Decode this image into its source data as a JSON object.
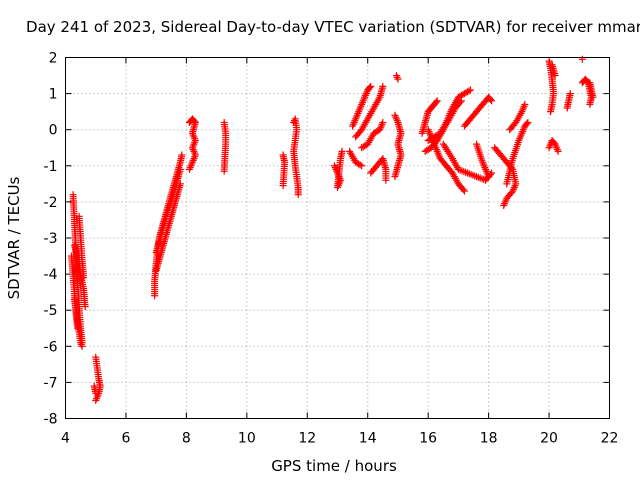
{
  "chart_data": {
    "type": "scatter",
    "title": "Day 241 of 2023, Sidereal Day-to-day VTEC variation (SDTVAR) for receiver mmar",
    "xlabel": "GPS time / hours",
    "ylabel": "SDTVAR / TECUs",
    "xlim": [
      4,
      22
    ],
    "ylim": [
      -8,
      2
    ],
    "xticks": [
      "4",
      "6",
      "8",
      "10",
      "12",
      "14",
      "16",
      "18",
      "20",
      "22"
    ],
    "yticks": [
      "2",
      "1",
      "0",
      "-1",
      "-2",
      "-3",
      "-4",
      "-5",
      "-6",
      "-7",
      "-8"
    ],
    "grid": true,
    "marker": "plus",
    "marker_color": "#ff0000",
    "series": [
      {
        "segments": [
          [
            [
              4.25,
              -1.8
            ],
            [
              4.3,
              -2.6
            ],
            [
              4.35,
              -3.4
            ],
            [
              4.4,
              -4.2
            ],
            [
              4.45,
              -4.9
            ],
            [
              4.5,
              -5.5
            ],
            [
              4.55,
              -5.9
            ]
          ],
          [
            [
              4.2,
              -3.5
            ],
            [
              4.25,
              -4.0
            ],
            [
              4.3,
              -4.6
            ],
            [
              4.35,
              -5.1
            ],
            [
              4.4,
              -5.5
            ]
          ],
          [
            [
              4.45,
              -2.4
            ],
            [
              4.5,
              -3.0
            ],
            [
              4.55,
              -3.6
            ],
            [
              4.6,
              -4.1
            ]
          ],
          [
            [
              4.3,
              -4.7
            ],
            [
              4.35,
              -5.0
            ],
            [
              4.4,
              -5.3
            ],
            [
              4.45,
              -5.6
            ],
            [
              4.5,
              -5.9
            ],
            [
              4.55,
              -6.0
            ]
          ],
          [
            [
              4.3,
              -3.2
            ],
            [
              4.4,
              -3.6
            ],
            [
              4.5,
              -4.0
            ],
            [
              4.6,
              -4.4
            ],
            [
              4.65,
              -4.9
            ]
          ],
          [
            [
              5.0,
              -6.3
            ],
            [
              5.05,
              -6.6
            ],
            [
              5.1,
              -6.9
            ],
            [
              5.15,
              -7.1
            ],
            [
              5.1,
              -7.3
            ],
            [
              5.05,
              -7.4
            ],
            [
              5.0,
              -7.5
            ]
          ],
          [
            [
              4.95,
              -7.1
            ],
            [
              5.0,
              -7.3
            ]
          ],
          [
            [
              6.95,
              -4.6
            ],
            [
              6.95,
              -4.2
            ],
            [
              7.0,
              -3.7
            ],
            [
              7.05,
              -3.3
            ],
            [
              7.1,
              -3.0
            ],
            [
              7.2,
              -2.7
            ],
            [
              7.3,
              -2.4
            ],
            [
              7.4,
              -2.1
            ],
            [
              7.5,
              -1.8
            ],
            [
              7.6,
              -1.5
            ],
            [
              7.7,
              -1.2
            ],
            [
              7.8,
              -0.9
            ],
            [
              7.85,
              -0.7
            ]
          ],
          [
            [
              7.0,
              -3.4
            ],
            [
              7.1,
              -3.1
            ],
            [
              7.2,
              -2.8
            ],
            [
              7.3,
              -2.5
            ],
            [
              7.4,
              -2.2
            ],
            [
              7.5,
              -2.0
            ],
            [
              7.6,
              -1.7
            ],
            [
              7.7,
              -1.4
            ],
            [
              7.8,
              -1.1
            ]
          ],
          [
            [
              7.0,
              -3.9
            ],
            [
              7.1,
              -3.6
            ],
            [
              7.2,
              -3.3
            ],
            [
              7.3,
              -3.0
            ],
            [
              7.4,
              -2.7
            ],
            [
              7.5,
              -2.4
            ],
            [
              7.6,
              -2.1
            ],
            [
              7.7,
              -1.8
            ],
            [
              7.8,
              -1.5
            ]
          ],
          [
            [
              8.1,
              0.2
            ],
            [
              8.2,
              0.3
            ],
            [
              8.3,
              0.2
            ],
            [
              8.2,
              -0.1
            ],
            [
              8.3,
              -0.3
            ],
            [
              8.2,
              -0.5
            ],
            [
              8.3,
              -0.7
            ],
            [
              8.2,
              -0.9
            ],
            [
              8.1,
              -1.1
            ]
          ],
          [
            [
              9.25,
              0.2
            ],
            [
              9.3,
              -0.1
            ],
            [
              9.3,
              -0.4
            ],
            [
              9.25,
              -1.15
            ]
          ],
          [
            [
              11.2,
              -0.7
            ],
            [
              11.25,
              -0.9
            ],
            [
              11.2,
              -1.55
            ]
          ],
          [
            [
              11.55,
              0.2
            ],
            [
              11.6,
              0.3
            ],
            [
              11.65,
              0.0
            ],
            [
              11.6,
              -0.3
            ],
            [
              11.55,
              -0.6
            ],
            [
              11.6,
              -1.0
            ],
            [
              11.65,
              -1.3
            ],
            [
              11.7,
              -1.6
            ],
            [
              11.7,
              -1.8
            ]
          ],
          [
            [
              12.9,
              -1.0
            ],
            [
              13.0,
              -1.2
            ],
            [
              13.1,
              -1.4
            ],
            [
              13.0,
              -1.6
            ],
            [
              13.1,
              -0.8
            ],
            [
              13.15,
              -0.6
            ]
          ],
          [
            [
              13.5,
              0.1
            ],
            [
              13.6,
              0.3
            ],
            [
              13.7,
              0.5
            ],
            [
              13.8,
              0.7
            ],
            [
              13.9,
              0.9
            ],
            [
              14.0,
              1.1
            ],
            [
              14.1,
              1.2
            ]
          ],
          [
            [
              13.6,
              -0.2
            ],
            [
              13.8,
              0.0
            ],
            [
              14.0,
              0.3
            ],
            [
              14.2,
              0.6
            ],
            [
              14.4,
              0.9
            ],
            [
              14.5,
              1.2
            ]
          ],
          [
            [
              13.8,
              -0.5
            ],
            [
              14.0,
              -0.4
            ],
            [
              14.2,
              -0.1
            ],
            [
              14.4,
              0.0
            ],
            [
              14.5,
              0.2
            ]
          ],
          [
            [
              13.4,
              -0.6
            ],
            [
              13.6,
              -0.9
            ],
            [
              13.8,
              -1.0
            ]
          ],
          [
            [
              14.1,
              -1.2
            ],
            [
              14.3,
              -1.0
            ],
            [
              14.5,
              -0.8
            ],
            [
              14.6,
              -1.1
            ],
            [
              14.6,
              -1.4
            ]
          ],
          [
            [
              14.95,
              1.5
            ],
            [
              15.0,
              1.4
            ]
          ],
          [
            [
              14.9,
              0.4
            ],
            [
              15.0,
              0.2
            ],
            [
              15.1,
              -0.1
            ],
            [
              15.0,
              -0.4
            ],
            [
              15.1,
              -0.7
            ],
            [
              15.0,
              -1.0
            ],
            [
              14.9,
              -1.3
            ]
          ],
          [
            [
              15.8,
              -0.1
            ],
            [
              15.9,
              0.2
            ],
            [
              16.0,
              0.5
            ],
            [
              16.1,
              0.6
            ],
            [
              16.2,
              0.7
            ],
            [
              16.3,
              0.8
            ]
          ],
          [
            [
              16.0,
              -0.3
            ],
            [
              16.2,
              -0.2
            ],
            [
              16.4,
              -0.1
            ],
            [
              16.6,
              0.2
            ],
            [
              16.8,
              0.6
            ],
            [
              17.0,
              0.9
            ],
            [
              17.2,
              1.0
            ],
            [
              17.4,
              1.1
            ]
          ],
          [
            [
              15.9,
              -0.6
            ],
            [
              16.1,
              -0.5
            ],
            [
              16.3,
              -0.3
            ],
            [
              16.5,
              0.0
            ],
            [
              16.7,
              0.3
            ],
            [
              16.9,
              0.6
            ],
            [
              17.1,
              0.8
            ]
          ],
          [
            [
              16.0,
              0.0
            ],
            [
              16.2,
              -0.4
            ],
            [
              16.4,
              -0.8
            ],
            [
              16.6,
              -1.0
            ],
            [
              16.8,
              -1.2
            ],
            [
              17.0,
              -1.5
            ],
            [
              17.2,
              -1.7
            ]
          ],
          [
            [
              16.5,
              -0.4
            ],
            [
              16.8,
              -0.8
            ],
            [
              17.0,
              -1.1
            ],
            [
              17.3,
              -1.2
            ],
            [
              17.6,
              -1.3
            ],
            [
              17.9,
              -1.4
            ],
            [
              18.1,
              -1.2
            ]
          ],
          [
            [
              17.2,
              0.1
            ],
            [
              17.4,
              0.3
            ],
            [
              17.6,
              0.5
            ],
            [
              17.8,
              0.7
            ],
            [
              18.0,
              0.9
            ],
            [
              18.1,
              0.8
            ]
          ],
          [
            [
              17.6,
              -0.4
            ],
            [
              17.8,
              -0.9
            ],
            [
              18.0,
              -1.3
            ]
          ],
          [
            [
              18.2,
              -0.5
            ],
            [
              18.4,
              -0.7
            ],
            [
              18.6,
              -0.9
            ],
            [
              18.8,
              -1.1
            ],
            [
              18.9,
              -1.5
            ],
            [
              18.8,
              -1.7
            ],
            [
              18.6,
              -1.9
            ],
            [
              18.5,
              -2.1
            ]
          ],
          [
            [
              18.6,
              -1.5
            ],
            [
              18.8,
              -0.8
            ],
            [
              19.0,
              -0.3
            ],
            [
              19.2,
              0.1
            ],
            [
              19.3,
              0.2
            ]
          ],
          [
            [
              18.7,
              0.0
            ],
            [
              18.9,
              0.2
            ],
            [
              19.1,
              0.5
            ],
            [
              19.2,
              0.7
            ]
          ],
          [
            [
              20.0,
              1.9
            ],
            [
              20.05,
              1.7
            ],
            [
              20.1,
              1.4
            ],
            [
              20.15,
              1.0
            ],
            [
              20.1,
              0.7
            ],
            [
              20.05,
              0.5
            ]
          ],
          [
            [
              20.1,
              1.8
            ],
            [
              20.2,
              1.5
            ]
          ],
          [
            [
              20.0,
              -0.5
            ],
            [
              20.1,
              -0.3
            ],
            [
              20.2,
              -0.4
            ],
            [
              20.3,
              -0.6
            ]
          ],
          [
            [
              20.6,
              0.6
            ],
            [
              20.65,
              0.8
            ],
            [
              20.7,
              1.0
            ]
          ],
          [
            [
              21.1,
              1.95
            ]
          ],
          [
            [
              21.1,
              1.3
            ],
            [
              21.2,
              1.4
            ],
            [
              21.3,
              1.3
            ],
            [
              21.35,
              1.1
            ],
            [
              21.4,
              0.9
            ],
            [
              21.35,
              0.7
            ]
          ],
          [
            [
              21.35,
              1.3
            ],
            [
              21.4,
              1.1
            ],
            [
              21.45,
              0.9
            ]
          ]
        ]
      }
    ]
  }
}
